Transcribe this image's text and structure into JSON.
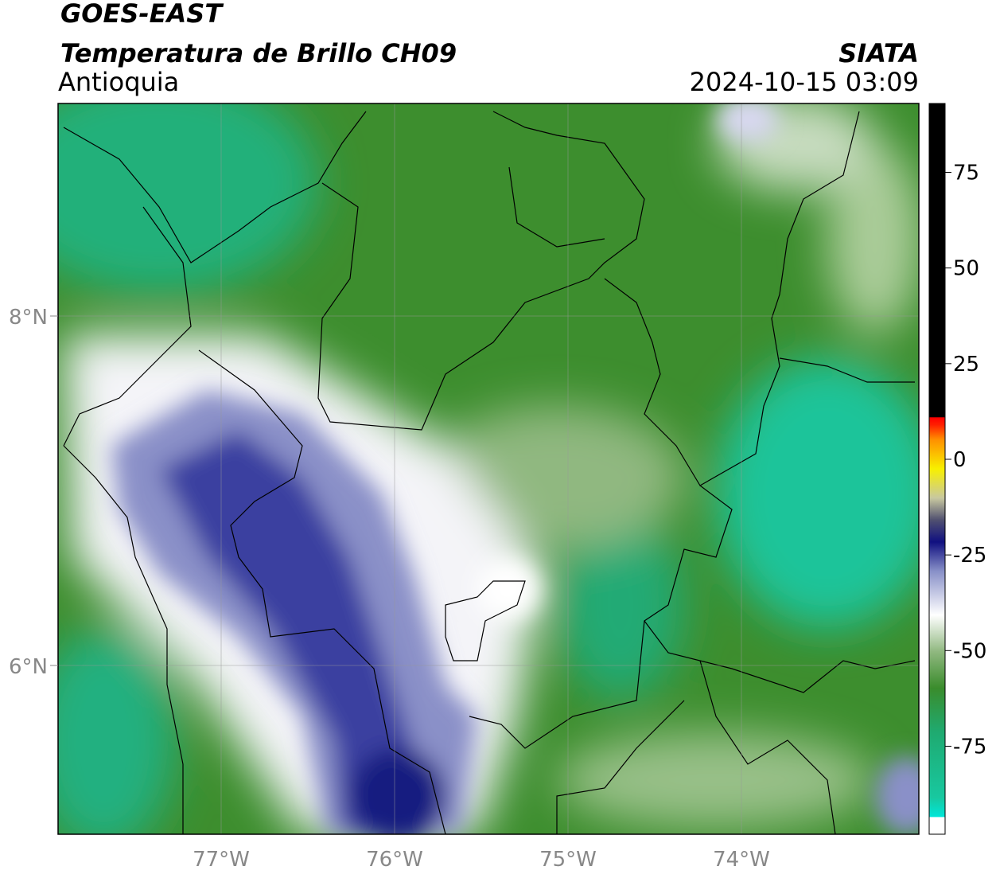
{
  "header": {
    "title": "GOES-EAST",
    "subtitle": "Temperatura de Brillo CH09",
    "region": "Antioquia",
    "source": "SIATA",
    "datetime": "2024-10-15 03:09"
  },
  "map": {
    "lat_labels": [
      "8°N",
      "6°N"
    ],
    "lon_labels": [
      "77°W",
      "76°W",
      "75°W",
      "74°W"
    ]
  },
  "colorbar": {
    "limits": [
      -98,
      93
    ],
    "ticks": [
      75,
      50,
      25,
      0,
      -25,
      -50,
      -75
    ]
  }
}
